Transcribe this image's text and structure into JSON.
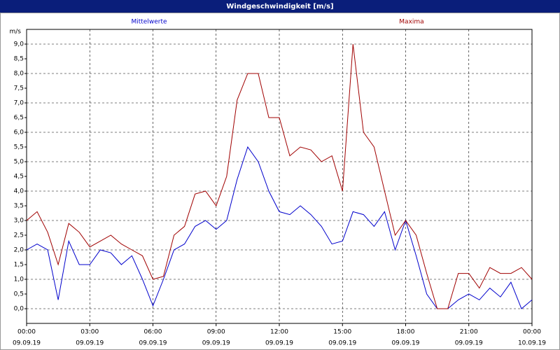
{
  "window_title": "Windgeschwindigkeit [m/s]",
  "chart_data": {
    "type": "line",
    "y_unit": "m/s",
    "x": [
      0,
      0.5,
      1,
      1.5,
      2,
      2.5,
      3,
      3.5,
      4,
      4.5,
      5,
      5.5,
      6,
      6.5,
      7,
      7.5,
      8,
      8.5,
      9,
      9.5,
      10,
      10.5,
      11,
      11.5,
      12,
      12.5,
      13,
      13.5,
      14,
      14.5,
      15,
      15.5,
      16,
      16.5,
      17,
      17.5,
      18,
      18.5,
      19,
      19.5,
      20,
      20.5,
      21,
      21.5,
      22,
      22.5,
      23,
      23.5,
      24
    ],
    "series": [
      {
        "name": "Mittelwerte",
        "color": "#0000cc",
        "values": [
          2.0,
          2.2,
          2.0,
          0.3,
          2.3,
          1.5,
          1.5,
          2.0,
          1.9,
          1.5,
          1.8,
          1.0,
          0.1,
          1.0,
          2.0,
          2.2,
          2.8,
          3.0,
          2.7,
          3.0,
          4.4,
          5.5,
          5.0,
          4.0,
          3.3,
          3.2,
          3.5,
          3.2,
          2.8,
          2.2,
          2.3,
          3.3,
          3.2,
          2.8,
          3.3,
          2.0,
          3.0,
          1.8,
          0.5,
          0.0,
          0.0,
          0.3,
          0.5,
          0.3,
          0.7,
          0.4,
          0.9,
          0.0,
          0.3
        ]
      },
      {
        "name": "Maxima",
        "color": "#a00000",
        "values": [
          3.0,
          3.3,
          2.6,
          1.5,
          2.9,
          2.6,
          2.1,
          2.3,
          2.5,
          2.2,
          2.0,
          1.8,
          1.0,
          1.1,
          2.5,
          2.8,
          3.9,
          4.0,
          3.5,
          4.5,
          7.1,
          8.0,
          8.0,
          6.5,
          6.5,
          5.2,
          5.5,
          5.4,
          5.0,
          5.2,
          4.0,
          9.0,
          6.0,
          5.5,
          4.0,
          2.5,
          3.0,
          2.5,
          1.2,
          0.0,
          0.0,
          1.2,
          1.2,
          0.7,
          1.4,
          1.2,
          1.2,
          1.4,
          1.0
        ]
      }
    ],
    "xlim": [
      0,
      24
    ],
    "xticks": [
      {
        "value": 0,
        "label": "00:00"
      },
      {
        "value": 3,
        "label": "03:00"
      },
      {
        "value": 6,
        "label": "06:00"
      },
      {
        "value": 9,
        "label": "09:00"
      },
      {
        "value": 12,
        "label": "12:00"
      },
      {
        "value": 15,
        "label": "15:00"
      },
      {
        "value": 18,
        "label": "18:00"
      },
      {
        "value": 21,
        "label": "21:00"
      },
      {
        "value": 24,
        "label": "00:00"
      }
    ],
    "xtick_dates": [
      "09.09.19",
      "09.09.19",
      "09.09.19",
      "09.09.19",
      "09.09.19",
      "09.09.19",
      "09.09.19",
      "09.09.19",
      "10.09.19"
    ],
    "ylim": [
      -0.5,
      9.5
    ],
    "yticks": [
      {
        "value": 0,
        "label": "0,0"
      },
      {
        "value": 0.5,
        "label": "0,5"
      },
      {
        "value": 1,
        "label": "1,0"
      },
      {
        "value": 1.5,
        "label": "1,5"
      },
      {
        "value": 2,
        "label": "2,0"
      },
      {
        "value": 2.5,
        "label": "2,5"
      },
      {
        "value": 3,
        "label": "3,0"
      },
      {
        "value": 3.5,
        "label": "3,5"
      },
      {
        "value": 4,
        "label": "4,0"
      },
      {
        "value": 4.5,
        "label": "4,5"
      },
      {
        "value": 5,
        "label": "5,0"
      },
      {
        "value": 5.5,
        "label": "5,5"
      },
      {
        "value": 6,
        "label": "6,0"
      },
      {
        "value": 6.5,
        "label": "6,5"
      },
      {
        "value": 7,
        "label": "7,0"
      },
      {
        "value": 7.5,
        "label": "7,5"
      },
      {
        "value": 8,
        "label": "8,0"
      },
      {
        "value": 8.5,
        "label": "8,5"
      },
      {
        "value": 9,
        "label": "9,0"
      }
    ],
    "grid": true
  }
}
